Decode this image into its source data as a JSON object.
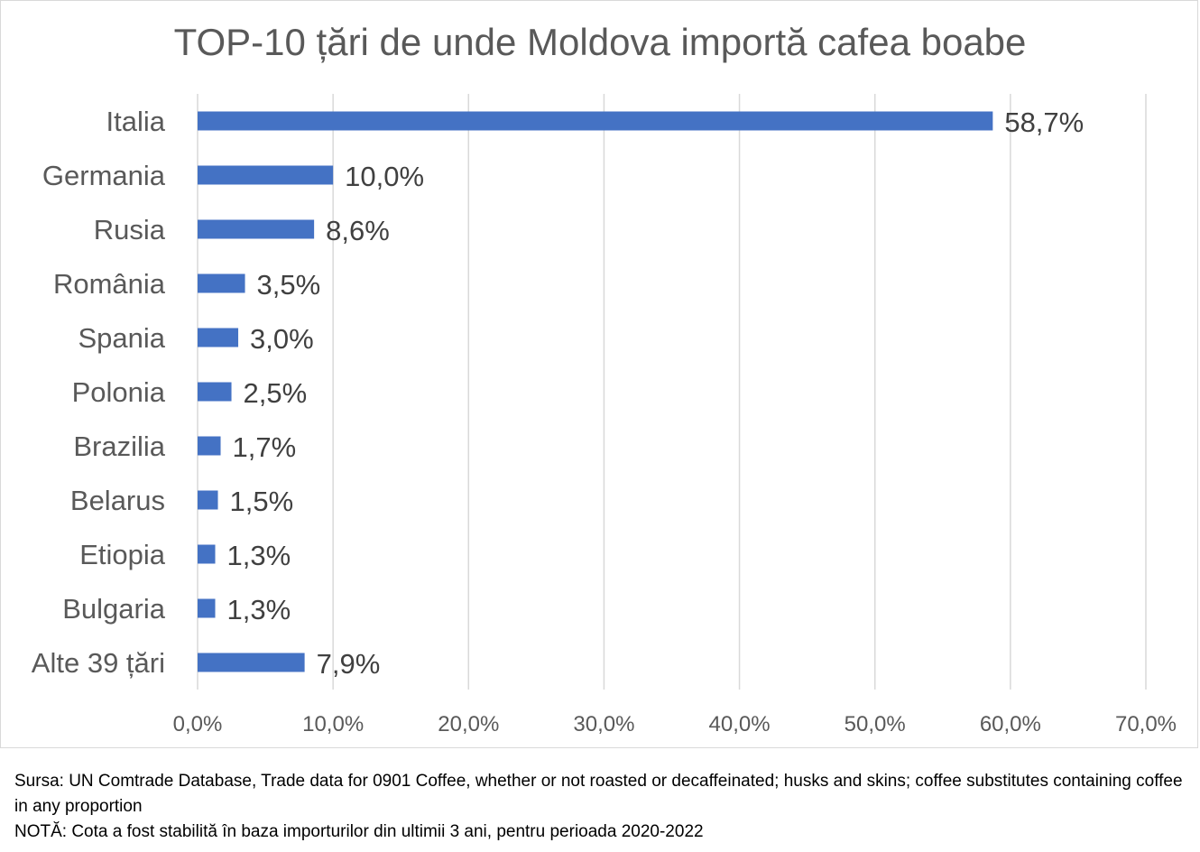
{
  "chart_data": {
    "type": "bar",
    "orientation": "horizontal",
    "title": "TOP-10 țări de unde Moldova importă cafea boabe",
    "categories": [
      "Italia",
      "Germania",
      "Rusia",
      "România",
      "Spania",
      "Polonia",
      "Brazilia",
      "Belarus",
      "Etiopia",
      "Bulgaria",
      "Alte 39 țări"
    ],
    "values": [
      58.7,
      10.0,
      8.6,
      3.5,
      3.0,
      2.5,
      1.7,
      1.5,
      1.3,
      1.3,
      7.9
    ],
    "data_labels": [
      "58,7%",
      "10,0%",
      "8,6%",
      "3,5%",
      "3,0%",
      "2,5%",
      "1,7%",
      "1,5%",
      "1,3%",
      "1,3%",
      "7,9%"
    ],
    "xlim": [
      0,
      70
    ],
    "x_ticks": [
      0,
      10,
      20,
      30,
      40,
      50,
      60,
      70
    ],
    "x_tick_labels": [
      "0,0%",
      "10,0%",
      "20,0%",
      "30,0%",
      "40,0%",
      "50,0%",
      "60,0%",
      "70,0%"
    ],
    "xlabel": "",
    "ylabel": "",
    "grid": "vertical",
    "legend": "none",
    "bar_color": "#4472c4",
    "grid_color": "#d9d9d9",
    "text_color": "#595959"
  },
  "notes": {
    "source": "Sursa: UN Comtrade Database, Trade data for 0901 Coffee, whether or not roasted or decaffeinated; husks and skins; coffee substitutes containing coffee in any proportion",
    "note": "NOTĂ: Cota a fost stabilită în baza importurilor din ultimii 3 ani, pentru perioada 2020-2022"
  }
}
